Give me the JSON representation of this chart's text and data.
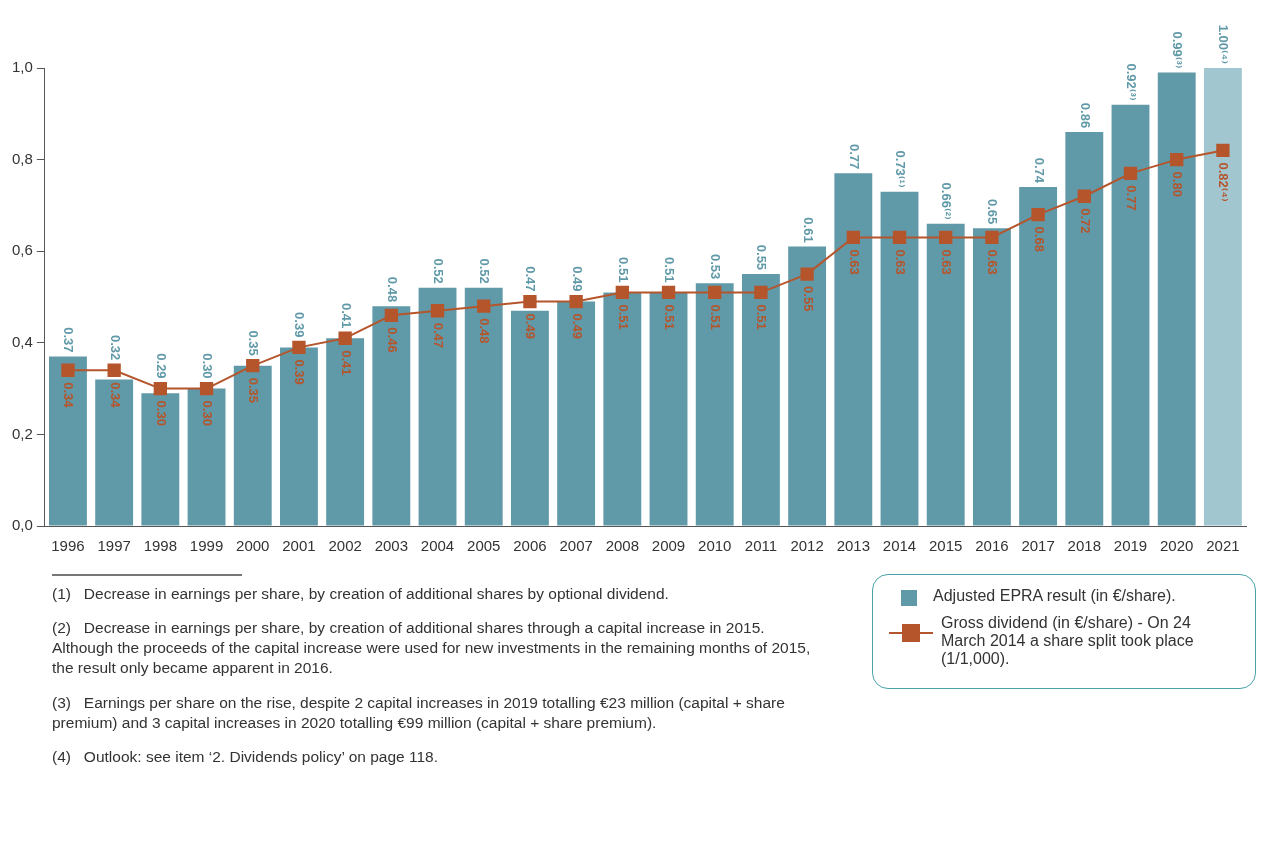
{
  "chart_data": {
    "type": "bar",
    "categories": [
      "1996",
      "1997",
      "1998",
      "1999",
      "2000",
      "2001",
      "2002",
      "2003",
      "2004",
      "2005",
      "2006",
      "2007",
      "2008",
      "2009",
      "2010",
      "2011",
      "2012",
      "2013",
      "2014",
      "2015",
      "2016",
      "2017",
      "2018",
      "2019",
      "2020",
      "2021"
    ],
    "series": [
      {
        "name": "Adjusted EPRA result (in €/share).",
        "color": "#6099a8",
        "colors": [
          "#6099a8",
          "#6099a8",
          "#6099a8",
          "#6099a8",
          "#6099a8",
          "#6099a8",
          "#6099a8",
          "#6099a8",
          "#6099a8",
          "#6099a8",
          "#6099a8",
          "#6099a8",
          "#6099a8",
          "#6099a8",
          "#6099a8",
          "#6099a8",
          "#6099a8",
          "#6099a8",
          "#6099a8",
          "#6099a8",
          "#6099a8",
          "#6099a8",
          "#6099a8",
          "#6099a8",
          "#6099a8",
          "#a2c6d0"
        ],
        "values": [
          0.37,
          0.32,
          0.29,
          0.3,
          0.35,
          0.39,
          0.41,
          0.48,
          0.52,
          0.52,
          0.47,
          0.49,
          0.51,
          0.51,
          0.53,
          0.55,
          0.61,
          0.77,
          0.73,
          0.66,
          0.65,
          0.74,
          0.86,
          0.92,
          0.99,
          1.0
        ],
        "value_labels": [
          "0.37",
          "0.32",
          "0.29",
          "0.30",
          "0.35",
          "0.39",
          "0.41",
          "0.48",
          "0.52",
          "0.52",
          "0.47",
          "0.49",
          "0.51",
          "0.51",
          "0.53",
          "0.55",
          "0.61",
          "0.77",
          "0.73⁽¹⁾",
          "0.66⁽²⁾",
          "0.65",
          "0.74",
          "0.86",
          "0.92⁽³⁾",
          "0.99⁽³⁾",
          "1.00⁽⁴⁾"
        ]
      },
      {
        "name": "Gross dividend (in €/share) - On 24 March 2014 a share split took place (1/1,000).",
        "type": "line",
        "color": "#b5552b",
        "marker": "square",
        "values": [
          0.34,
          0.34,
          0.3,
          0.3,
          0.35,
          0.39,
          0.41,
          0.46,
          0.47,
          0.48,
          0.49,
          0.49,
          0.51,
          0.51,
          0.51,
          0.51,
          0.55,
          0.63,
          0.63,
          0.63,
          0.63,
          0.68,
          0.72,
          0.77,
          0.8,
          0.82
        ],
        "value_labels": [
          "0.34",
          "0.34",
          "0.30",
          "0.30",
          "0.35",
          "0.39",
          "0.41",
          "0.46",
          "0.47",
          "0.48",
          "0.49",
          "0.49",
          "0.51",
          "0.51",
          "0.51",
          "0.51",
          "0.55",
          "0.63",
          "0.63",
          "0.63",
          "0.63",
          "0.68",
          "0.72",
          "0.77",
          "0.80",
          "0.82⁽⁴⁾"
        ]
      }
    ],
    "ylim": [
      0,
      1
    ],
    "yticks": [
      {
        "value": 0,
        "label": "0,0"
      },
      {
        "value": 0.2,
        "label": "0,2"
      },
      {
        "value": 0.4,
        "label": "0,4"
      },
      {
        "value": 0.6,
        "label": "0,6"
      },
      {
        "value": 0.8,
        "label": "0,8"
      },
      {
        "value": 1,
        "label": "1,0"
      }
    ],
    "grid": false,
    "legend": "bottom right",
    "annotations": [
      "(1)   Decrease in earnings per share, by creation of additional shares by optional dividend.",
      "(2)   Decrease in earnings per share, by creation of additional shares through a capital increase in 2015. Although the proceeds of the capital increase were used for new investments in the remaining months of 2015, the result only became apparent in 2016.",
      "(3)   Earnings per share on the rise, despite 2 capital increases in 2019 totalling €23 million (capital + share premium) and 3 capital increases in 2020 totalling €99 million (capital + share premium).",
      "(4)   Outlook: see item ‘2. Dividends policy’ on page 118."
    ]
  }
}
